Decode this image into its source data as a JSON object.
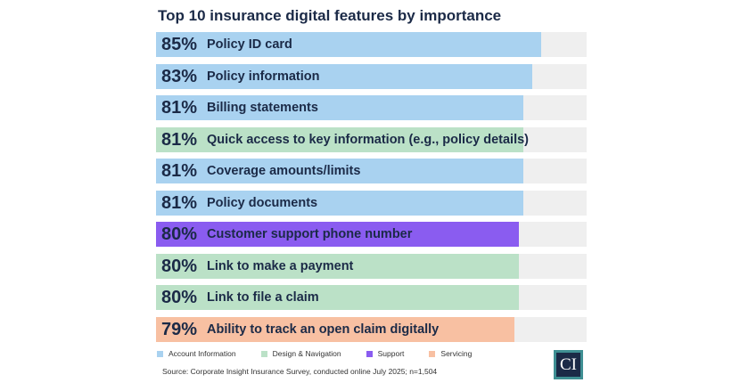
{
  "chart_data": {
    "type": "bar",
    "title": "Top 10 insurance digital features by importance",
    "xlim": [
      0,
      95
    ],
    "categories": [
      "Policy ID card",
      "Policy information",
      "Billing statements",
      "Quick access to key information (e.g., policy details)",
      "Coverage amounts/limits",
      "Policy documents",
      "Customer support phone number",
      "Link to make a payment",
      "Link to file a claim",
      "Ability to track an open claim digitally"
    ],
    "values": [
      85,
      83,
      81,
      81,
      81,
      81,
      80,
      80,
      80,
      79
    ],
    "labels": [
      "85%",
      "83%",
      "81%",
      "81%",
      "81%",
      "81%",
      "80%",
      "80%",
      "80%",
      "79%"
    ],
    "groups": [
      "Account Information",
      "Account Information",
      "Account Information",
      "Design & Navigation",
      "Account Information",
      "Account Information",
      "Support",
      "Design & Navigation",
      "Design & Navigation",
      "Servicing"
    ],
    "legend": [
      {
        "name": "Account Information",
        "color": "#a9d2f0"
      },
      {
        "name": "Design & Navigation",
        "color": "#bbe1c7"
      },
      {
        "name": "Support",
        "color": "#8a5cf0"
      },
      {
        "name": "Servicing",
        "color": "#f8c0a2"
      }
    ],
    "legend_position": "bottom-left"
  },
  "source": "Source: Corporate Insight Insurance Survey, conducted online July 2025; n=1,504",
  "logo_text": "CI"
}
